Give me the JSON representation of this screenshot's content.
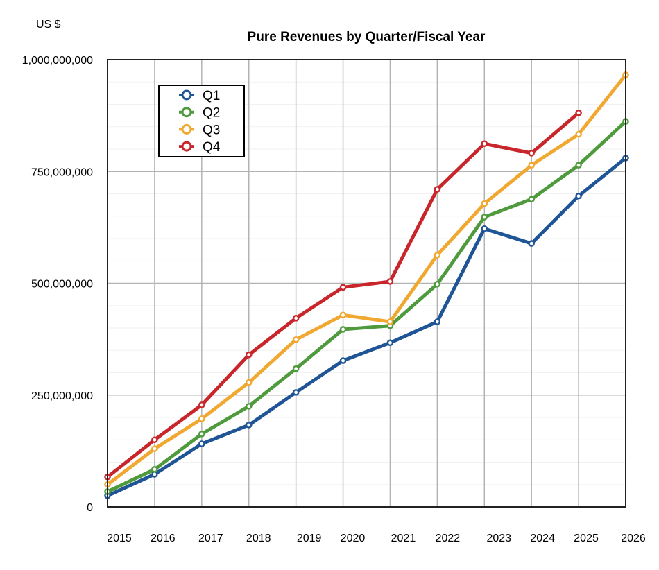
{
  "chart_data": {
    "type": "line",
    "title": "Pure Revenues by Quarter/Fiscal Year",
    "ylabel": "US $",
    "xlabel": "",
    "x": [
      2015,
      2016,
      2017,
      2018,
      2019,
      2020,
      2021,
      2022,
      2023,
      2024,
      2025,
      2026
    ],
    "x_tick_labels": [
      "2015",
      "2016",
      "2017",
      "2018",
      "2019",
      "2020",
      "2021",
      "2022",
      "2023",
      "2024",
      "2025",
      "2026"
    ],
    "ylim": [
      0,
      1000000000
    ],
    "y_ticks": [
      0,
      250000000,
      500000000,
      750000000,
      1000000000
    ],
    "y_tick_labels": [
      "0",
      "250,000,000",
      "500,000,000",
      "750,000,000",
      "1,000,000,000"
    ],
    "grid": true,
    "legend": {
      "placement": "top-left",
      "entries": [
        "Q1",
        "Q2",
        "Q3",
        "Q4"
      ]
    },
    "series": [
      {
        "name": "Q1",
        "color": "#1f5596",
        "values": [
          25000000,
          73000000,
          141000000,
          183000000,
          256000000,
          327000000,
          367000000,
          414000000,
          622000000,
          589000000,
          695000000,
          780000000
        ]
      },
      {
        "name": "Q2",
        "color": "#4e9a3c",
        "values": [
          34000000,
          84000000,
          163000000,
          225000000,
          309000000,
          397000000,
          405000000,
          498000000,
          648000000,
          688000000,
          764000000,
          862000000
        ]
      },
      {
        "name": "Q3",
        "color": "#f0a830",
        "values": [
          50000000,
          130000000,
          197000000,
          278000000,
          374000000,
          429000000,
          414000000,
          563000000,
          678000000,
          764000000,
          833000000,
          966000000
        ]
      },
      {
        "name": "Q4",
        "color": "#c8262a",
        "values": [
          67000000,
          150000000,
          228000000,
          340000000,
          422000000,
          491000000,
          504000000,
          710000000,
          812000000,
          791000000,
          881000000,
          null
        ]
      }
    ]
  }
}
